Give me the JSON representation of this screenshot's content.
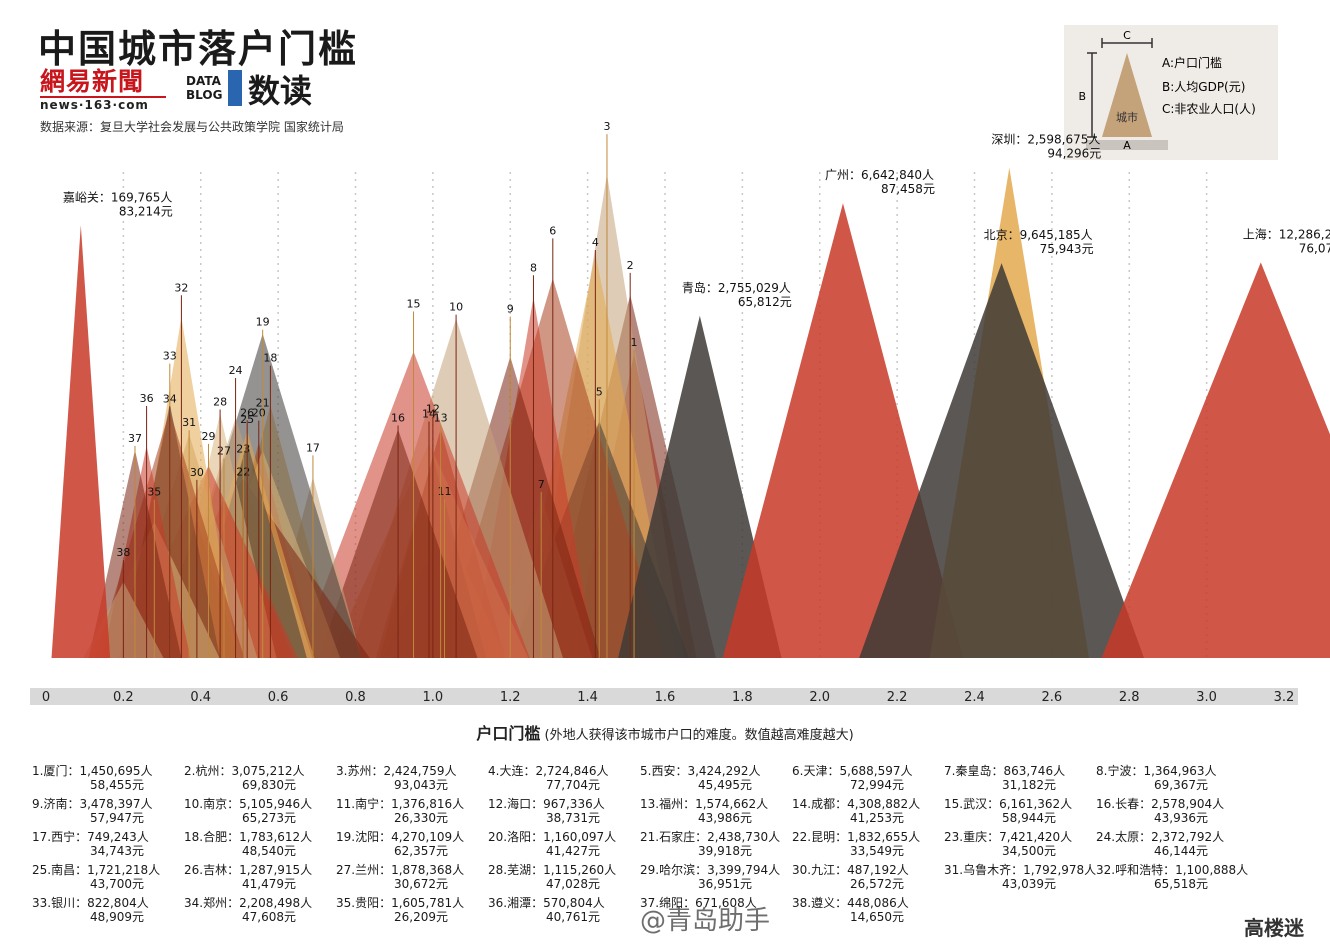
{
  "title": "中国城市落户门槛",
  "logo_163": {
    "name": "網易新聞",
    "sub": "news·163·com"
  },
  "logo_datablog": {
    "line1": "DATA",
    "line2": "BLOG"
  },
  "brand": "数读",
  "source": "数据来源：复旦大学社会发展与公共政策学院 国家统计局",
  "legend": {
    "a_label": "A:户口门槛",
    "b_label": "B:人均GDP(元)",
    "c_label": "C:非农业人口(人)",
    "triangle_text": "城市",
    "axis_a": "A",
    "axis_b": "B",
    "axis_c": "C"
  },
  "xlabel_main": "户口门槛",
  "xlabel_note": "(外地人获得该市城市户口的难度。数值越高难度越大)",
  "watermark": "@青岛助手",
  "logo_right": "高楼迷",
  "colors": {
    "red": "#c83a28",
    "dark": "#3e3a36",
    "tan": "#c4a27a",
    "orange": "#e3a94e",
    "brown": "#7a2412"
  },
  "chart_data": {
    "type": "area",
    "xlim": [
      0,
      3.2
    ],
    "xticks": [
      "0",
      "0.2",
      "0.4",
      "0.6",
      "0.8",
      "1.0",
      "1.2",
      "1.4",
      "1.6",
      "1.8",
      "2.0",
      "2.2",
      "2.4",
      "2.6",
      "2.8",
      "3.0",
      "3.2"
    ],
    "featured": [
      {
        "label": "嘉峪关：169,765人",
        "gdp": "83,214元",
        "x": 0.09,
        "gdp_value": 83214,
        "pop_value": 169765,
        "color": "red"
      },
      {
        "label": "青岛：2,755,029人",
        "gdp": "65,812元",
        "x": 1.69,
        "gdp_value": 65812,
        "pop_value": 2755029,
        "color": "dark"
      },
      {
        "label": "广州：6,642,840人",
        "gdp": "87,458元",
        "x": 2.06,
        "gdp_value": 87458,
        "pop_value": 6642840,
        "color": "red"
      },
      {
        "label": "深圳：2,598,675人",
        "gdp": "94,296元",
        "x": 2.49,
        "gdp_value": 94296,
        "pop_value": 2598675,
        "color": "orange"
      },
      {
        "label": "北京：9,645,185人",
        "gdp": "75,943元",
        "x": 2.47,
        "gdp_value": 75943,
        "pop_value": 9645185,
        "color": "dark"
      },
      {
        "label": "上海：12,286,274人",
        "gdp": "76,074元",
        "x": 3.14,
        "gdp_value": 76074,
        "pop_value": 12286274,
        "color": "red"
      }
    ],
    "ranked": [
      {
        "rank": "1",
        "x": 1.52
      },
      {
        "rank": "2",
        "x": 1.51
      },
      {
        "rank": "3",
        "x": 1.45
      },
      {
        "rank": "4",
        "x": 1.42
      },
      {
        "rank": "5",
        "x": 1.43
      },
      {
        "rank": "6",
        "x": 1.31
      },
      {
        "rank": "7",
        "x": 1.28
      },
      {
        "rank": "8",
        "x": 1.26
      },
      {
        "rank": "9",
        "x": 1.2
      },
      {
        "rank": "10",
        "x": 1.06
      },
      {
        "rank": "11",
        "x": 1.03
      },
      {
        "rank": "12",
        "x": 1.0
      },
      {
        "rank": "13",
        "x": 1.02
      },
      {
        "rank": "14",
        "x": 0.99
      },
      {
        "rank": "15",
        "x": 0.95
      },
      {
        "rank": "16",
        "x": 0.91
      },
      {
        "rank": "17",
        "x": 0.69
      },
      {
        "rank": "18",
        "x": 0.58
      },
      {
        "rank": "19",
        "x": 0.56
      },
      {
        "rank": "20",
        "x": 0.55
      },
      {
        "rank": "21",
        "x": 0.56
      },
      {
        "rank": "22",
        "x": 0.51
      },
      {
        "rank": "23",
        "x": 0.51
      },
      {
        "rank": "24",
        "x": 0.49
      },
      {
        "rank": "25",
        "x": 0.52
      },
      {
        "rank": "26",
        "x": 0.52
      },
      {
        "rank": "27",
        "x": 0.46
      },
      {
        "rank": "28",
        "x": 0.45
      },
      {
        "rank": "29",
        "x": 0.42
      },
      {
        "rank": "30",
        "x": 0.39
      },
      {
        "rank": "31",
        "x": 0.37
      },
      {
        "rank": "32",
        "x": 0.35
      },
      {
        "rank": "33",
        "x": 0.32
      },
      {
        "rank": "34",
        "x": 0.32
      },
      {
        "rank": "35",
        "x": 0.28
      },
      {
        "rank": "36",
        "x": 0.26
      },
      {
        "rank": "37",
        "x": 0.23
      },
      {
        "rank": "38",
        "x": 0.2
      }
    ],
    "cities": [
      {
        "label": "1.厦门：1,450,695人",
        "gdp": "58,455元",
        "pop_value": 1450695,
        "gdp_value": 58455
      },
      {
        "label": "2.杭州：3,075,212人",
        "gdp": "69,830元",
        "pop_value": 3075212,
        "gdp_value": 69830
      },
      {
        "label": "3.苏州：2,424,759人",
        "gdp": "93,043元",
        "pop_value": 2424759,
        "gdp_value": 93043
      },
      {
        "label": "4.大连：2,724,846人",
        "gdp": "77,704元",
        "pop_value": 2724846,
        "gdp_value": 77704
      },
      {
        "label": "5.西安：3,424,292人",
        "gdp": "45,495元",
        "pop_value": 3424292,
        "gdp_value": 45495
      },
      {
        "label": "6.天津：5,688,597人",
        "gdp": "72,994元",
        "pop_value": 5688597,
        "gdp_value": 72994
      },
      {
        "label": "7.秦皇岛：863,746人",
        "gdp": "31,182元",
        "pop_value": 863746,
        "gdp_value": 31182
      },
      {
        "label": "8.宁波：1,364,963人",
        "gdp": "69,367元",
        "pop_value": 1364963,
        "gdp_value": 69367
      },
      {
        "label": "9.济南：3,478,397人",
        "gdp": "57,947元",
        "pop_value": 3478397,
        "gdp_value": 57947
      },
      {
        "label": "10.南京：5,105,946人",
        "gdp": "65,273元",
        "pop_value": 5105946,
        "gdp_value": 65273
      },
      {
        "label": "11.南宁：1,376,816人",
        "gdp": "26,330元",
        "pop_value": 1376816,
        "gdp_value": 26330
      },
      {
        "label": "12.海口：967,336人",
        "gdp": "38,731元",
        "pop_value": 967336,
        "gdp_value": 38731
      },
      {
        "label": "13.福州：1,574,662人",
        "gdp": "43,986元",
        "pop_value": 1574662,
        "gdp_value": 43986
      },
      {
        "label": "14.成都：4,308,882人",
        "gdp": "41,253元",
        "pop_value": 4308882,
        "gdp_value": 41253
      },
      {
        "label": "15.武汉：6,161,362人",
        "gdp": "58,944元",
        "pop_value": 6161362,
        "gdp_value": 58944
      },
      {
        "label": "16.长春：2,578,904人",
        "gdp": "43,936元",
        "pop_value": 2578904,
        "gdp_value": 43936
      },
      {
        "label": "17.西宁：749,243人",
        "gdp": "34,743元",
        "pop_value": 749243,
        "gdp_value": 34743
      },
      {
        "label": "18.合肥：1,783,612人",
        "gdp": "48,540元",
        "pop_value": 1783612,
        "gdp_value": 48540
      },
      {
        "label": "19.沈阳：4,270,109人",
        "gdp": "62,357元",
        "pop_value": 4270109,
        "gdp_value": 62357
      },
      {
        "label": "20.洛阳：1,160,097人",
        "gdp": "41,427元",
        "pop_value": 1160097,
        "gdp_value": 41427
      },
      {
        "label": "21.石家庄：2,438,730人",
        "gdp": "39,918元",
        "pop_value": 2438730,
        "gdp_value": 39918
      },
      {
        "label": "22.昆明：1,832,655人",
        "gdp": "33,549元",
        "pop_value": 1832655,
        "gdp_value": 33549
      },
      {
        "label": "23.重庆：7,421,420人",
        "gdp": "34,500元",
        "pop_value": 7421420,
        "gdp_value": 34500
      },
      {
        "label": "24.太原：2,372,792人",
        "gdp": "46,144元",
        "pop_value": 2372792,
        "gdp_value": 46144
      },
      {
        "label": "25.南昌：1,721,218人",
        "gdp": "43,700元",
        "pop_value": 1721218,
        "gdp_value": 43700
      },
      {
        "label": "26.吉林：1,287,915人",
        "gdp": "41,479元",
        "pop_value": 1287915,
        "gdp_value": 41479
      },
      {
        "label": "27.兰州：1,878,368人",
        "gdp": "30,672元",
        "pop_value": 1878368,
        "gdp_value": 30672
      },
      {
        "label": "28.芜湖：1,115,260人",
        "gdp": "47,028元",
        "pop_value": 1115260,
        "gdp_value": 47028
      },
      {
        "label": "29.哈尔滨：3,399,794人",
        "gdp": "36,951元",
        "pop_value": 3399794,
        "gdp_value": 36951
      },
      {
        "label": "30.九江：487,192人",
        "gdp": "26,572元",
        "pop_value": 487192,
        "gdp_value": 26572
      },
      {
        "label": "31.乌鲁木齐：1,792,978人",
        "gdp": "43,039元",
        "pop_value": 1792978,
        "gdp_value": 43039
      },
      {
        "label": "32.呼和浩特：1,100,888人",
        "gdp": "65,518元",
        "pop_value": 1100888,
        "gdp_value": 65518
      },
      {
        "label": "33.银川：822,804人",
        "gdp": "48,909元",
        "pop_value": 822804,
        "gdp_value": 48909
      },
      {
        "label": "34.郑州：2,208,498人",
        "gdp": "47,608元",
        "pop_value": 2208498,
        "gdp_value": 47608
      },
      {
        "label": "35.贵阳：1,605,781人",
        "gdp": "26,209元",
        "pop_value": 1605781,
        "gdp_value": 26209
      },
      {
        "label": "36.湘潭：570,804人",
        "gdp": "40,761元",
        "pop_value": 570804,
        "gdp_value": 40761
      },
      {
        "label": "37.绵阳：671,608人",
        "gdp": "",
        "pop_value": 671608
      },
      {
        "label": "38.遵义：448,086人",
        "gdp": "14,650元",
        "pop_value": 448086,
        "gdp_value": 14650
      }
    ]
  }
}
